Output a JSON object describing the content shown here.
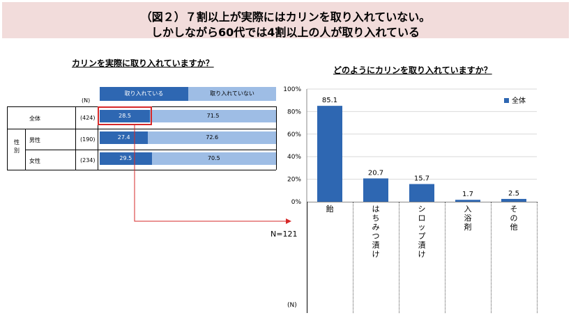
{
  "title": {
    "line1": "（図２）７割以上が実際にはカリンを取り入れていない。",
    "line2": "しかしながら60代では4割以上の人が取り入れている"
  },
  "left_chart": {
    "question": "カリンを実際に取り入れていますか？",
    "n_header": "(N)",
    "legend": [
      "取り入れている",
      "取り入れていない"
    ],
    "group_label": "性別",
    "rows": [
      {
        "label": "全体",
        "n": "(424)",
        "yes": 28.5,
        "no": 71.5
      },
      {
        "label": "男性",
        "n": "(190)",
        "yes": 27.4,
        "no": 72.6
      },
      {
        "label": "女性",
        "n": "(234)",
        "yes": 29.5,
        "no": 70.5
      }
    ],
    "colors": {
      "yes": "#2e67b2",
      "no": "#9ebde5",
      "highlight": "#d62828"
    }
  },
  "right_chart": {
    "question": "どのようにカリンを取り入れていますか？",
    "n_label": "N=121",
    "n_header": "(N)",
    "legend": "全体"
  },
  "chart_data": {
    "type": "bar",
    "title": "どのようにカリンを取り入れていますか？",
    "categories": [
      "飴",
      "はちみつ漬け",
      "シロップ漬け",
      "入浴剤",
      "その他"
    ],
    "series": [
      {
        "name": "全体",
        "values": [
          85.1,
          20.7,
          15.7,
          1.7,
          2.5
        ]
      }
    ],
    "value_labels": [
      "85.1",
      "20.7",
      "15.7",
      "1.7",
      "2.5"
    ],
    "ylim": [
      0,
      100
    ],
    "yticks": [
      "0%",
      "20%",
      "40%",
      "60%",
      "80%",
      "100%"
    ],
    "grid": true,
    "legend_position": "top-right",
    "color": "#2e67b2"
  }
}
